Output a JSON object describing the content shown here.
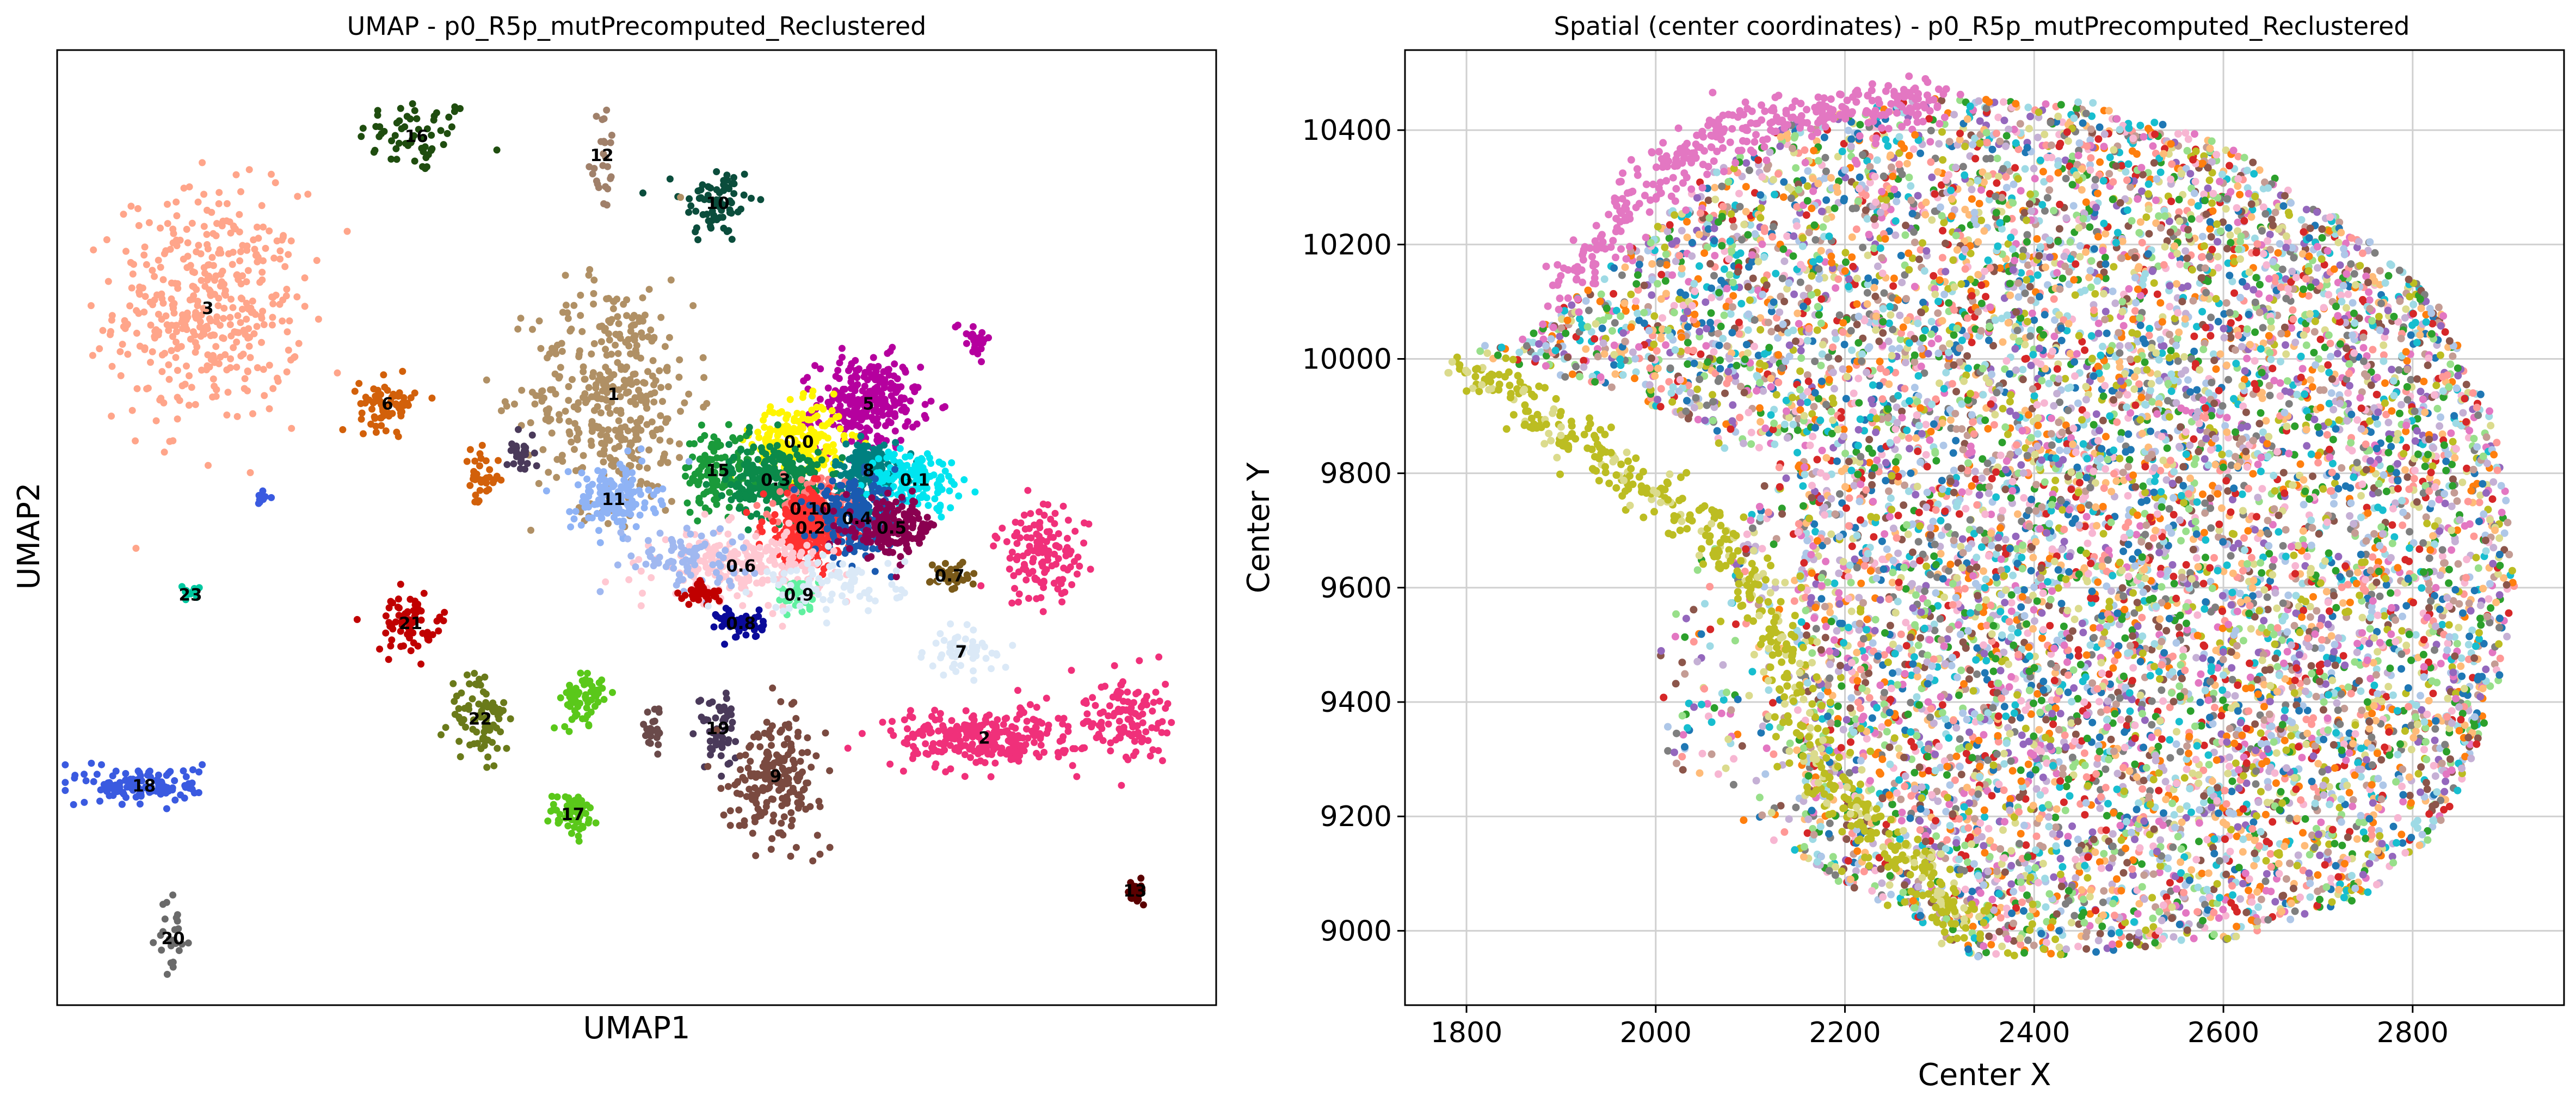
{
  "chart_data": [
    {
      "type": "scatter",
      "title": "UMAP - p0_R5p_mutPrecomputed_Reclustered",
      "xlabel": "UMAP1",
      "ylabel": "UMAP2",
      "xlim": [
        0,
        100
      ],
      "ylim": [
        0,
        100
      ],
      "ticks": false,
      "grid": false,
      "legend": "none",
      "clusters": [
        {
          "label": "16",
          "x": 31,
          "y": 91,
          "sx": 2.5,
          "sy": 2,
          "color": "#1f4d0f",
          "n": 60
        },
        {
          "label": "12",
          "x": 47,
          "y": 89,
          "sx": 0.6,
          "sy": 3,
          "color": "#a0806a",
          "n": 25
        },
        {
          "label": "10",
          "x": 57,
          "y": 84,
          "sx": 1.6,
          "sy": 2.2,
          "color": "#0b4d3c",
          "n": 70
        },
        {
          "label": "3",
          "x": 13,
          "y": 73,
          "sx": 4,
          "sy": 6,
          "color": "#ffa58a",
          "n": 420
        },
        {
          "label": "5",
          "x": 70,
          "y": 63,
          "sx": 2.2,
          "sy": 2.4,
          "color": "#b5009e",
          "n": 260
        },
        {
          "label": "",
          "x": 79,
          "y": 70,
          "sx": 0.8,
          "sy": 1,
          "color": "#b5009e",
          "n": 25
        },
        {
          "label": "1",
          "x": 48,
          "y": 64,
          "sx": 3.5,
          "sy": 6,
          "color": "#b09065",
          "n": 380
        },
        {
          "label": "6",
          "x": 28.5,
          "y": 63,
          "sx": 1.2,
          "sy": 1.3,
          "color": "#d2600a",
          "n": 70
        },
        {
          "label": "",
          "x": 36.5,
          "y": 55,
          "sx": 0.8,
          "sy": 1.5,
          "color": "#d2600a",
          "n": 35
        },
        {
          "label": "",
          "x": 40,
          "y": 58,
          "sx": 0.6,
          "sy": 1.2,
          "color": "#4a3a5a",
          "n": 25
        },
        {
          "label": "0.0",
          "x": 64,
          "y": 59,
          "sx": 2,
          "sy": 2,
          "color": "#fff500",
          "n": 220
        },
        {
          "label": "15",
          "x": 57,
          "y": 56,
          "sx": 1.5,
          "sy": 2,
          "color": "#1a9a3a",
          "n": 120
        },
        {
          "label": "0.3",
          "x": 62,
          "y": 55,
          "sx": 2,
          "sy": 2,
          "color": "#0b8a4a",
          "n": 260
        },
        {
          "label": "8",
          "x": 70,
          "y": 56,
          "sx": 1.5,
          "sy": 1.5,
          "color": "#008080",
          "n": 150
        },
        {
          "label": "0.1",
          "x": 74,
          "y": 55,
          "sx": 2,
          "sy": 1.5,
          "color": "#00e5f0",
          "n": 150
        },
        {
          "label": "11",
          "x": 48,
          "y": 53,
          "sx": 1.8,
          "sy": 1.8,
          "color": "#8fb3f5",
          "n": 150
        },
        {
          "label": "0.10",
          "x": 65,
          "y": 52,
          "sx": 1.5,
          "sy": 1.5,
          "color": "#ff8080",
          "n": 150
        },
        {
          "label": "0.2",
          "x": 65,
          "y": 50,
          "sx": 2,
          "sy": 2,
          "color": "#ff3030",
          "n": 220
        },
        {
          "label": "0.4",
          "x": 69,
          "y": 51,
          "sx": 1.8,
          "sy": 1.8,
          "color": "#1a5ab0",
          "n": 220
        },
        {
          "label": "0.5",
          "x": 72,
          "y": 50,
          "sx": 2,
          "sy": 1.5,
          "color": "#8a0050",
          "n": 150
        },
        {
          "label": "0.6",
          "x": 59,
          "y": 46,
          "sx": 3.5,
          "sy": 1.8,
          "color": "#ffc8d2",
          "n": 230
        },
        {
          "label": "",
          "x": 54,
          "y": 47,
          "sx": 3,
          "sy": 1.5,
          "color": "#a0b8f0",
          "n": 80
        },
        {
          "label": "0.7",
          "x": 77,
          "y": 45,
          "sx": 0.8,
          "sy": 0.8,
          "color": "#7a5a1a",
          "n": 40
        },
        {
          "label": "0.9",
          "x": 64,
          "y": 43,
          "sx": 0.8,
          "sy": 0.8,
          "color": "#60f0a0",
          "n": 45
        },
        {
          "label": "",
          "x": 55.5,
          "y": 43,
          "sx": 0.8,
          "sy": 0.6,
          "color": "#c00000",
          "n": 40
        },
        {
          "label": "0.8",
          "x": 59,
          "y": 40,
          "sx": 1,
          "sy": 0.8,
          "color": "#0a0a9a",
          "n": 60
        },
        {
          "label": "",
          "x": 67,
          "y": 44,
          "sx": 3,
          "sy": 1.5,
          "color": "#dbe9f7",
          "n": 90
        },
        {
          "label": "",
          "x": 85,
          "y": 47,
          "sx": 2,
          "sy": 2.5,
          "color": "#f0307a",
          "n": 130
        },
        {
          "label": "7",
          "x": 78,
          "y": 37,
          "sx": 1.5,
          "sy": 1.2,
          "color": "#dbe9f7",
          "n": 50
        },
        {
          "label": "23",
          "x": 11.5,
          "y": 43,
          "sx": 0.4,
          "sy": 0.4,
          "color": "#00c8a0",
          "n": 15
        },
        {
          "label": "",
          "x": 17.5,
          "y": 53,
          "sx": 0.3,
          "sy": 0.4,
          "color": "#3a5ae0",
          "n": 10
        },
        {
          "label": "21",
          "x": 30.5,
          "y": 40,
          "sx": 1.5,
          "sy": 1.5,
          "color": "#c00000",
          "n": 70
        },
        {
          "label": "22",
          "x": 36.5,
          "y": 30,
          "sx": 1.3,
          "sy": 2.5,
          "color": "#6a7a1a",
          "n": 80
        },
        {
          "label": "",
          "x": 45.5,
          "y": 32,
          "sx": 1,
          "sy": 1.5,
          "color": "#5ac81a",
          "n": 60
        },
        {
          "label": "",
          "x": 51.5,
          "y": 29,
          "sx": 0.6,
          "sy": 1.2,
          "color": "#6a4a4a",
          "n": 25
        },
        {
          "label": "19",
          "x": 57,
          "y": 29,
          "sx": 0.8,
          "sy": 2,
          "color": "#4a3a5a",
          "n": 50
        },
        {
          "label": "9",
          "x": 62,
          "y": 24,
          "sx": 2,
          "sy": 3,
          "color": "#7a4a40",
          "n": 200
        },
        {
          "label": "2",
          "x": 80,
          "y": 28,
          "sx": 4,
          "sy": 1.5,
          "color": "#f0307a",
          "n": 260
        },
        {
          "label": "",
          "x": 92,
          "y": 30,
          "sx": 1.8,
          "sy": 2.5,
          "color": "#f0307a",
          "n": 120
        },
        {
          "label": "18",
          "x": 7.5,
          "y": 23,
          "sx": 2.5,
          "sy": 1,
          "color": "#3a5ae0",
          "n": 130
        },
        {
          "label": "17",
          "x": 44.5,
          "y": 20,
          "sx": 1,
          "sy": 1.2,
          "color": "#5ac81a",
          "n": 60
        },
        {
          "label": "20",
          "x": 10,
          "y": 7,
          "sx": 0.6,
          "sy": 2,
          "color": "#6a6a6a",
          "n": 25
        },
        {
          "label": "13",
          "x": 93,
          "y": 12,
          "sx": 0.4,
          "sy": 1,
          "color": "#5a0000",
          "n": 25
        }
      ]
    },
    {
      "type": "scatter",
      "title": "Spatial (center coordinates) - p0_R5p_mutPrecomputed_Reclustered",
      "xlabel": "Center X",
      "ylabel": "Center Y",
      "xlim": [
        1735,
        2960
      ],
      "ylim": [
        8870,
        10540
      ],
      "xticks": [
        1800,
        2000,
        2200,
        2400,
        2600,
        2800
      ],
      "yticks": [
        9000,
        9200,
        9400,
        9600,
        9800,
        10000,
        10200,
        10400
      ],
      "xtick_labels": [
        "1800",
        "2000",
        "2200",
        "2400",
        "2600",
        "2800"
      ],
      "ytick_labels": [
        "9000",
        "9200",
        "9400",
        "9600",
        "9800",
        "10000",
        "10200",
        "10400"
      ],
      "grid": true,
      "legend": "none",
      "palette": [
        "#1f77b4",
        "#ff7f0e",
        "#2ca02c",
        "#d62728",
        "#9467bd",
        "#8c564b",
        "#e377c2",
        "#7f7f7f",
        "#bcbd22",
        "#17becf",
        "#aec7e8",
        "#ffbb78",
        "#98df8a",
        "#ff9896",
        "#c5b0d5",
        "#c49c94",
        "#f7b6d2",
        "#dbdb8d",
        "#9edae5"
      ],
      "outline_left": [
        [
          2300,
          9000
        ],
        [
          2200,
          9080
        ],
        [
          2080,
          9200
        ],
        [
          2010,
          9300
        ],
        [
          2000,
          9500
        ],
        [
          2040,
          9640
        ],
        [
          2120,
          9760
        ],
        [
          2050,
          9880
        ],
        [
          1950,
          9950
        ],
        [
          1900,
          9970
        ],
        [
          1830,
          10000
        ],
        [
          1790,
          10010
        ],
        [
          1880,
          10060
        ],
        [
          1980,
          10200
        ],
        [
          2050,
          10320
        ],
        [
          2150,
          10420
        ],
        [
          2300,
          10460
        ],
        [
          2420,
          10450
        ]
      ],
      "outline_right": [
        [
          2460,
          10450
        ],
        [
          2600,
          10380
        ],
        [
          2720,
          10250
        ],
        [
          2820,
          10120
        ],
        [
          2890,
          9880
        ],
        [
          2910,
          9600
        ],
        [
          2890,
          9400
        ],
        [
          2830,
          9180
        ],
        [
          2750,
          9060
        ],
        [
          2600,
          8980
        ],
        [
          2450,
          8960
        ],
        [
          2330,
          8950
        ]
      ],
      "band_pink": [
        [
          1900,
          10100
        ],
        [
          1980,
          10300
        ],
        [
          2080,
          10400
        ],
        [
          2200,
          10440
        ],
        [
          2300,
          10450
        ]
      ],
      "band_olive": [
        [
          1800,
          9990
        ],
        [
          1880,
          9900
        ],
        [
          1960,
          9800
        ],
        [
          2060,
          9700
        ],
        [
          2120,
          9560
        ],
        [
          2150,
          9380
        ],
        [
          2200,
          9220
        ],
        [
          2280,
          9100
        ],
        [
          2330,
          8990
        ]
      ]
    }
  ]
}
